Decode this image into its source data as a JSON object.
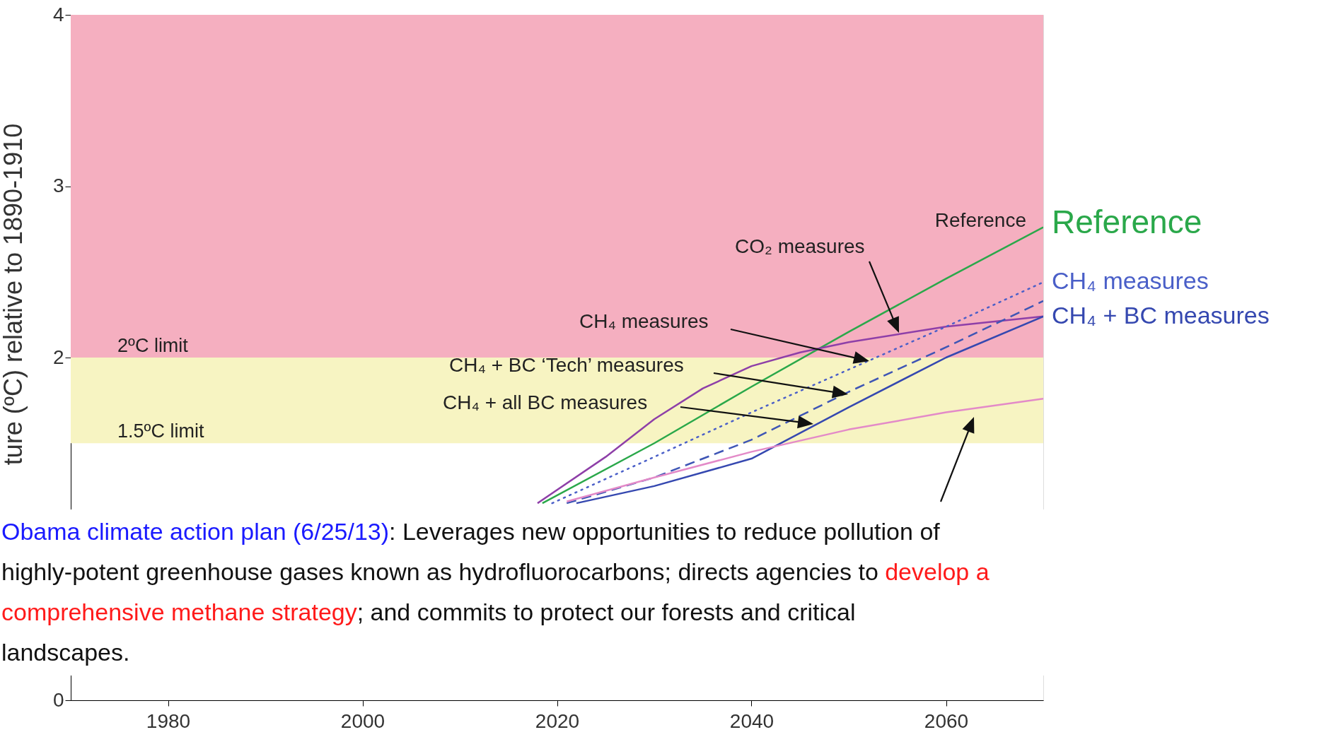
{
  "chart_data": {
    "type": "line",
    "ylabel": "ture (ºC) relative to 1890-1910",
    "xlim": [
      1970,
      2070
    ],
    "xticks": [
      1980,
      2000,
      2020,
      2040,
      2060
    ],
    "ylim": [
      0,
      4
    ],
    "yticks": [
      0,
      2,
      3,
      4
    ],
    "grid": false,
    "series": [
      {
        "name": "Reference",
        "color": "#2aa84a",
        "line_style": "solid",
        "x": [
          2018.5,
          2030,
          2040,
          2050,
          2060,
          2070
        ],
        "values": [
          1.15,
          1.5,
          1.83,
          2.15,
          2.46,
          2.76
        ]
      },
      {
        "color": "#8e3fa8",
        "line_style": "solid",
        "x": [
          2018,
          2025,
          2030,
          2035,
          2040,
          2045,
          2050,
          2060,
          2070
        ],
        "values": [
          1.15,
          1.42,
          1.64,
          1.82,
          1.95,
          2.03,
          2.09,
          2.18,
          2.24
        ]
      },
      {
        "name": "CH₄ measures",
        "color": "#4a5fc8",
        "line_style": "dotted",
        "x": [
          2019.5,
          2030,
          2040,
          2050,
          2060,
          2070
        ],
        "values": [
          1.15,
          1.42,
          1.68,
          1.93,
          2.18,
          2.44
        ]
      },
      {
        "color": "#3e55b5",
        "line_style": "dashed",
        "x": [
          2021,
          2030,
          2040,
          2050,
          2060,
          2070
        ],
        "values": [
          1.15,
          1.3,
          1.52,
          1.8,
          2.06,
          2.33
        ]
      },
      {
        "name": "CH₄ + BC measures",
        "color": "#3548b0",
        "line_style": "solid",
        "x": [
          2022,
          2030,
          2040,
          2050,
          2060,
          2070
        ],
        "values": [
          1.15,
          1.25,
          1.41,
          1.71,
          2.0,
          2.24
        ]
      },
      {
        "color": "#e38ac8",
        "line_style": "solid",
        "x": [
          2021,
          2030,
          2040,
          2050,
          2060,
          2070
        ],
        "values": [
          1.16,
          1.3,
          1.45,
          1.58,
          1.68,
          1.76
        ]
      }
    ],
    "bands": [
      {
        "axis": "y",
        "from": 2,
        "to": 4,
        "label": "2ºC limit",
        "color": "#f5afc0"
      },
      {
        "axis": "y",
        "from": 1.5,
        "to": 2,
        "label": "1.5ºC limit",
        "color": "#f7f4c2"
      }
    ],
    "annotations": [
      "Reference",
      "CO₂ measures",
      "CH₄ measures",
      "CH₄ + BC ‘Tech’ measures",
      "CH₄ + all BC measures",
      "Obama climate action plan (6/25/13)",
      ": Leverages new opportunities to reduce pollution of",
      "highly-potent greenhouse gases known as hydrofluorocarbons; directs agencies to ",
      "develop a",
      "comprehensive methane strategy",
      "; and commits to protect our forests and critical",
      "landscapes."
    ]
  }
}
